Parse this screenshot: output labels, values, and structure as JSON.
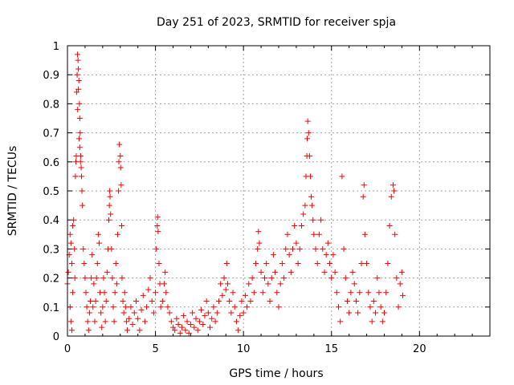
{
  "chart_data": {
    "type": "scatter",
    "title": "Day 251 of 2023, SRMTID for receiver spja",
    "xlabel": "GPS time / hours",
    "ylabel": "SRMTID / TECUs",
    "xlim": [
      0,
      24
    ],
    "ylim": [
      0,
      1
    ],
    "xticks": [
      0,
      5,
      10,
      15,
      20
    ],
    "xtick_labels": [
      "0",
      "5",
      "10",
      "15",
      "20"
    ],
    "yticks": [
      0,
      0.1,
      0.2,
      0.3,
      0.4,
      0.5,
      0.6,
      0.7,
      0.8,
      0.9,
      1
    ],
    "ytick_labels": [
      "0",
      "0.1",
      "0.2",
      "0.3",
      "0.4",
      "0.5",
      "0.6",
      "0.7",
      "0.8",
      "0.9",
      "1"
    ],
    "grid": true,
    "marker": "+",
    "color": "#ff0000",
    "series": [
      {
        "name": "SRMTID",
        "points": [
          [
            0.0,
            0.18
          ],
          [
            0.05,
            0.22
          ],
          [
            0.1,
            0.28
          ],
          [
            0.15,
            0.35
          ],
          [
            0.2,
            0.32
          ],
          [
            0.25,
            0.25
          ],
          [
            0.3,
            0.38
          ],
          [
            0.35,
            0.4
          ],
          [
            0.3,
            0.15
          ],
          [
            0.2,
            0.05
          ],
          [
            0.25,
            0.02
          ],
          [
            0.15,
            0.1
          ],
          [
            0.4,
            0.3
          ],
          [
            0.42,
            0.2
          ],
          [
            0.45,
            0.55
          ],
          [
            0.48,
            0.6
          ],
          [
            0.5,
            0.62
          ],
          [
            0.52,
            0.84
          ],
          [
            0.55,
            0.9
          ],
          [
            0.57,
            0.97
          ],
          [
            0.6,
            0.95
          ],
          [
            0.62,
            0.92
          ],
          [
            0.65,
            0.88
          ],
          [
            0.68,
            0.8
          ],
          [
            0.7,
            0.75
          ],
          [
            0.72,
            0.7
          ],
          [
            0.75,
            0.62
          ],
          [
            0.78,
            0.58
          ],
          [
            0.8,
            0.55
          ],
          [
            0.82,
            0.5
          ],
          [
            0.85,
            0.45
          ],
          [
            0.62,
            0.85
          ],
          [
            0.58,
            0.78
          ],
          [
            0.66,
            0.68
          ],
          [
            0.7,
            0.65
          ],
          [
            0.74,
            0.6
          ],
          [
            0.9,
            0.3
          ],
          [
            0.95,
            0.25
          ],
          [
            1.0,
            0.2
          ],
          [
            1.05,
            0.15
          ],
          [
            1.1,
            0.1
          ],
          [
            1.15,
            0.05
          ],
          [
            1.2,
            0.02
          ],
          [
            1.25,
            0.08
          ],
          [
            1.3,
            0.12
          ],
          [
            1.35,
            0.2
          ],
          [
            1.4,
            0.28
          ],
          [
            1.45,
            0.1
          ],
          [
            1.5,
            0.18
          ],
          [
            1.55,
            0.05
          ],
          [
            1.6,
            0.12
          ],
          [
            1.65,
            0.2
          ],
          [
            1.7,
            0.25
          ],
          [
            1.75,
            0.35
          ],
          [
            1.8,
            0.32
          ],
          [
            1.85,
            0.15
          ],
          [
            1.9,
            0.08
          ],
          [
            1.95,
            0.03
          ],
          [
            2.0,
            0.1
          ],
          [
            2.05,
            0.2
          ],
          [
            2.1,
            0.15
          ],
          [
            2.15,
            0.05
          ],
          [
            2.2,
            0.12
          ],
          [
            2.25,
            0.22
          ],
          [
            2.3,
            0.3
          ],
          [
            2.35,
            0.4
          ],
          [
            2.38,
            0.45
          ],
          [
            2.4,
            0.5
          ],
          [
            2.42,
            0.48
          ],
          [
            2.45,
            0.42
          ],
          [
            2.5,
            0.3
          ],
          [
            2.55,
            0.2
          ],
          [
            2.6,
            0.1
          ],
          [
            2.65,
            0.05
          ],
          [
            2.7,
            0.15
          ],
          [
            2.75,
            0.25
          ],
          [
            2.8,
            0.18
          ],
          [
            2.85,
            0.35
          ],
          [
            2.9,
            0.5
          ],
          [
            2.92,
            0.6
          ],
          [
            2.95,
            0.66
          ],
          [
            3.0,
            0.62
          ],
          [
            3.02,
            0.58
          ],
          [
            3.05,
            0.52
          ],
          [
            3.08,
            0.38
          ],
          [
            3.1,
            0.2
          ],
          [
            3.15,
            0.12
          ],
          [
            3.2,
            0.08
          ],
          [
            3.25,
            0.15
          ],
          [
            3.3,
            0.1
          ],
          [
            3.35,
            0.05
          ],
          [
            3.4,
            0.02
          ],
          [
            3.5,
            0.06
          ],
          [
            3.6,
            0.1
          ],
          [
            3.7,
            0.04
          ],
          [
            3.8,
            0.08
          ],
          [
            3.9,
            0.12
          ],
          [
            4.0,
            0.06
          ],
          [
            4.1,
            0.02
          ],
          [
            4.2,
            0.09
          ],
          [
            4.3,
            0.14
          ],
          [
            4.4,
            0.05
          ],
          [
            4.5,
            0.1
          ],
          [
            4.6,
            0.16
          ],
          [
            4.7,
            0.2
          ],
          [
            4.8,
            0.12
          ],
          [
            4.9,
            0.08
          ],
          [
            5.0,
            0.15
          ],
          [
            5.05,
            0.3
          ],
          [
            5.1,
            0.38
          ],
          [
            5.12,
            0.41
          ],
          [
            5.15,
            0.36
          ],
          [
            5.2,
            0.25
          ],
          [
            5.25,
            0.18
          ],
          [
            5.3,
            0.1
          ],
          [
            5.4,
            0.12
          ],
          [
            5.5,
            0.18
          ],
          [
            5.55,
            0.22
          ],
          [
            5.6,
            0.15
          ],
          [
            5.7,
            0.1
          ],
          [
            5.8,
            0.08
          ],
          [
            5.9,
            0.05
          ],
          [
            6.0,
            0.03
          ],
          [
            6.1,
            0.02
          ],
          [
            6.2,
            0.06
          ],
          [
            6.3,
            0.04
          ],
          [
            6.4,
            0.01
          ],
          [
            6.5,
            0.03
          ],
          [
            6.6,
            0.07
          ],
          [
            6.7,
            0.02
          ],
          [
            6.8,
            0.05
          ],
          [
            6.9,
            0.01
          ],
          [
            7.0,
            0.04
          ],
          [
            7.1,
            0.08
          ],
          [
            7.2,
            0.03
          ],
          [
            7.3,
            0.06
          ],
          [
            7.4,
            0.02
          ],
          [
            7.5,
            0.05
          ],
          [
            7.6,
            0.09
          ],
          [
            7.7,
            0.04
          ],
          [
            7.8,
            0.07
          ],
          [
            7.9,
            0.12
          ],
          [
            8.0,
            0.08
          ],
          [
            8.1,
            0.03
          ],
          [
            8.2,
            0.06
          ],
          [
            8.3,
            0.1
          ],
          [
            8.4,
            0.05
          ],
          [
            8.5,
            0.08
          ],
          [
            8.6,
            0.12
          ],
          [
            8.7,
            0.18
          ],
          [
            8.8,
            0.14
          ],
          [
            8.9,
            0.2
          ],
          [
            9.0,
            0.16
          ],
          [
            9.05,
            0.25
          ],
          [
            9.1,
            0.18
          ],
          [
            9.2,
            0.12
          ],
          [
            9.3,
            0.08
          ],
          [
            9.4,
            0.15
          ],
          [
            9.5,
            0.1
          ],
          [
            9.6,
            0.05
          ],
          [
            9.7,
            0.02
          ],
          [
            9.8,
            0.07
          ],
          [
            9.9,
            0.12
          ],
          [
            10.0,
            0.08
          ],
          [
            10.1,
            0.14
          ],
          [
            10.2,
            0.1
          ],
          [
            10.3,
            0.18
          ],
          [
            10.4,
            0.12
          ],
          [
            10.5,
            0.2
          ],
          [
            10.6,
            0.15
          ],
          [
            10.7,
            0.25
          ],
          [
            10.8,
            0.3
          ],
          [
            10.85,
            0.36
          ],
          [
            10.9,
            0.32
          ],
          [
            11.0,
            0.22
          ],
          [
            11.1,
            0.15
          ],
          [
            11.2,
            0.2
          ],
          [
            11.3,
            0.25
          ],
          [
            11.4,
            0.18
          ],
          [
            11.5,
            0.12
          ],
          [
            11.6,
            0.2
          ],
          [
            11.7,
            0.28
          ],
          [
            11.8,
            0.22
          ],
          [
            11.9,
            0.15
          ],
          [
            12.0,
            0.1
          ],
          [
            12.1,
            0.18
          ],
          [
            12.2,
            0.25
          ],
          [
            12.3,
            0.2
          ],
          [
            12.4,
            0.3
          ],
          [
            12.5,
            0.35
          ],
          [
            12.6,
            0.28
          ],
          [
            12.7,
            0.22
          ],
          [
            12.8,
            0.3
          ],
          [
            12.9,
            0.38
          ],
          [
            13.0,
            0.32
          ],
          [
            13.1,
            0.25
          ],
          [
            13.2,
            0.3
          ],
          [
            13.3,
            0.38
          ],
          [
            13.4,
            0.42
          ],
          [
            13.5,
            0.45
          ],
          [
            13.55,
            0.55
          ],
          [
            13.6,
            0.62
          ],
          [
            13.62,
            0.68
          ],
          [
            13.65,
            0.74
          ],
          [
            13.7,
            0.7
          ],
          [
            13.75,
            0.62
          ],
          [
            13.8,
            0.55
          ],
          [
            13.85,
            0.48
          ],
          [
            13.9,
            0.45
          ],
          [
            13.95,
            0.4
          ],
          [
            14.0,
            0.35
          ],
          [
            14.1,
            0.3
          ],
          [
            14.2,
            0.25
          ],
          [
            14.3,
            0.35
          ],
          [
            14.4,
            0.4
          ],
          [
            14.5,
            0.3
          ],
          [
            14.6,
            0.22
          ],
          [
            14.7,
            0.28
          ],
          [
            14.8,
            0.32
          ],
          [
            14.9,
            0.25
          ],
          [
            15.0,
            0.2
          ],
          [
            15.1,
            0.28
          ],
          [
            15.2,
            0.22
          ],
          [
            15.3,
            0.15
          ],
          [
            15.4,
            0.1
          ],
          [
            15.5,
            0.05
          ],
          [
            15.6,
            0.55
          ],
          [
            15.7,
            0.3
          ],
          [
            15.8,
            0.2
          ],
          [
            15.9,
            0.12
          ],
          [
            16.0,
            0.08
          ],
          [
            16.1,
            0.15
          ],
          [
            16.2,
            0.22
          ],
          [
            16.3,
            0.18
          ],
          [
            16.4,
            0.12
          ],
          [
            16.5,
            0.08
          ],
          [
            16.6,
            0.15
          ],
          [
            16.7,
            0.25
          ],
          [
            16.8,
            0.48
          ],
          [
            16.85,
            0.52
          ],
          [
            16.9,
            0.35
          ],
          [
            17.0,
            0.25
          ],
          [
            17.1,
            0.15
          ],
          [
            17.2,
            0.1
          ],
          [
            17.3,
            0.05
          ],
          [
            17.4,
            0.12
          ],
          [
            17.5,
            0.08
          ],
          [
            17.6,
            0.2
          ],
          [
            17.7,
            0.15
          ],
          [
            17.8,
            0.1
          ],
          [
            17.9,
            0.05
          ],
          [
            18.0,
            0.08
          ],
          [
            18.1,
            0.15
          ],
          [
            18.2,
            0.25
          ],
          [
            18.3,
            0.38
          ],
          [
            18.4,
            0.48
          ],
          [
            18.5,
            0.52
          ],
          [
            18.55,
            0.5
          ],
          [
            18.6,
            0.35
          ],
          [
            18.7,
            0.2
          ],
          [
            18.8,
            0.1
          ],
          [
            18.9,
            0.18
          ],
          [
            19.0,
            0.22
          ],
          [
            19.05,
            0.14
          ]
        ]
      }
    ]
  }
}
